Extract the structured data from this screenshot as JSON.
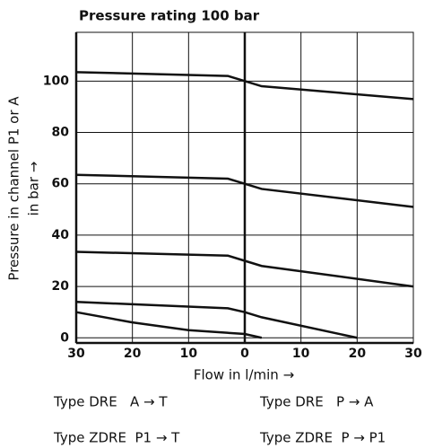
{
  "chart_data": {
    "type": "line",
    "title": "Pressure rating 100 bar",
    "ylabel": [
      "Pressure in channel P1 or A",
      "in bar →"
    ],
    "xlabel": "Flow in l/min →",
    "annotations": [
      "Type DRE   A → T",
      "Type DRE   P → A",
      "Type ZDRE  P1 → T",
      "Type ZDRE  P → P1"
    ],
    "xlim": [
      -30,
      30
    ],
    "ylim": [
      -2,
      119
    ],
    "xticks": [
      {
        "value": -30,
        "label": "30"
      },
      {
        "value": -20,
        "label": "20"
      },
      {
        "value": -10,
        "label": "10"
      },
      0,
      10,
      20,
      30
    ],
    "yticks": [
      0,
      20,
      40,
      60,
      80,
      100
    ],
    "grid": true,
    "series": [
      {
        "color": "#111111",
        "x": [
          -30,
          -3,
          0,
          3,
          30
        ],
        "values": [
          103.5,
          102,
          100,
          98,
          93
        ]
      },
      {
        "color": "#111111",
        "x": [
          -30,
          -3,
          0,
          3,
          30
        ],
        "values": [
          63.5,
          62,
          60,
          58,
          51
        ]
      },
      {
        "color": "#111111",
        "x": [
          -30,
          -3,
          0,
          3,
          30
        ],
        "values": [
          33.5,
          32,
          30,
          28,
          20
        ]
      },
      {
        "color": "#111111",
        "x": [
          -30,
          -3,
          0,
          3,
          20
        ],
        "values": [
          14,
          11.5,
          10,
          8,
          0
        ]
      },
      {
        "color": "#111111",
        "x": [
          -30,
          -20,
          -10,
          0,
          3
        ],
        "values": [
          10,
          6,
          3,
          1.5,
          0
        ]
      }
    ]
  }
}
